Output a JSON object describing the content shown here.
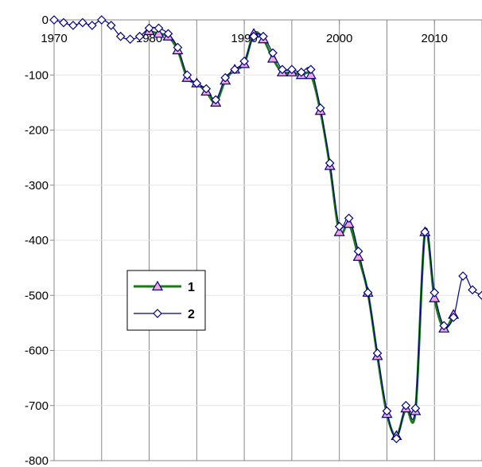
{
  "chart_data": {
    "type": "line",
    "title": "",
    "xlabel": "",
    "ylabel": "",
    "xlim": [
      1970,
      2015
    ],
    "ylim": [
      -800,
      0
    ],
    "x_ticks": [
      1970,
      1980,
      1990,
      2000,
      2010
    ],
    "y_ticks": [
      0,
      -100,
      -200,
      -300,
      -400,
      -500,
      -600,
      -700,
      -800
    ],
    "grid": true,
    "legend_position": "left-middle",
    "series": [
      {
        "name": "1",
        "line_color": "#1a7a1a",
        "marker": "triangle",
        "marker_fill": "#f4a6d7",
        "marker_stroke": "#000080",
        "x": [
          1980,
          1981,
          1982,
          1983,
          1984,
          1985,
          1986,
          1987,
          1988,
          1989,
          1990,
          1991,
          1992,
          1993,
          1994,
          1995,
          1996,
          1997,
          1998,
          1999,
          2000,
          2001,
          2002,
          2003,
          2004,
          2005,
          2006,
          2007,
          2008,
          2009,
          2010,
          2011,
          2012
        ],
        "y": [
          -20,
          -25,
          -30,
          -55,
          -105,
          -115,
          -130,
          -150,
          -110,
          -90,
          -80,
          -25,
          -35,
          -70,
          -95,
          -95,
          -100,
          -100,
          -165,
          -265,
          -385,
          -370,
          -430,
          -495,
          -610,
          -715,
          -755,
          -705,
          -710,
          -385,
          -505,
          -560,
          -535
        ]
      },
      {
        "name": "2",
        "line_color": "#000080",
        "marker": "diamond",
        "marker_fill": "#ffffff",
        "marker_stroke": "#000080",
        "x": [
          1970,
          1971,
          1972,
          1973,
          1974,
          1975,
          1976,
          1977,
          1978,
          1979,
          1980,
          1981,
          1982,
          1983,
          1984,
          1985,
          1986,
          1987,
          1988,
          1989,
          1990,
          1991,
          1992,
          1993,
          1994,
          1995,
          1996,
          1997,
          1998,
          1999,
          2000,
          2001,
          2002,
          2003,
          2004,
          2005,
          2006,
          2007,
          2008,
          2009,
          2010,
          2011,
          2012,
          2013,
          2014,
          2015
        ],
        "y": [
          0,
          -5,
          -10,
          -5,
          -10,
          0,
          -10,
          -30,
          -35,
          -30,
          -15,
          -15,
          -25,
          -50,
          -100,
          -115,
          -125,
          -145,
          -105,
          -90,
          -75,
          -30,
          -30,
          -60,
          -90,
          -90,
          -95,
          -90,
          -160,
          -260,
          -375,
          -360,
          -420,
          -495,
          -605,
          -710,
          -760,
          -700,
          -705,
          -385,
          -495,
          -555,
          -540,
          -465,
          -490,
          -500
        ]
      }
    ]
  }
}
